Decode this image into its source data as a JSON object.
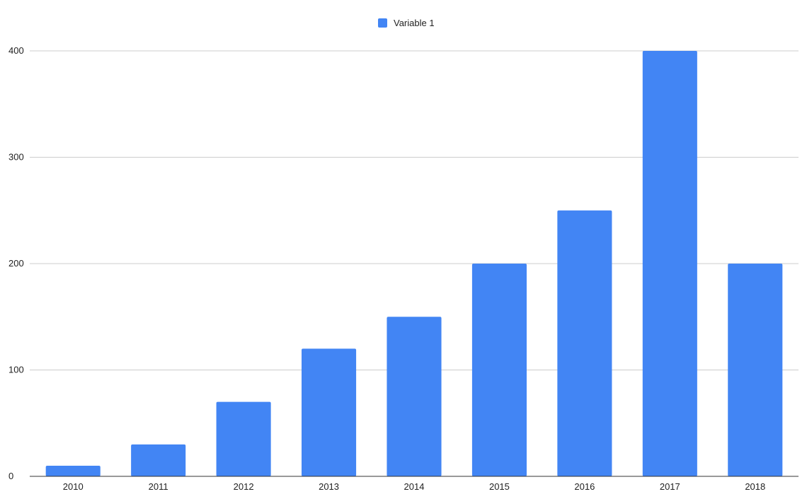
{
  "chart_data": {
    "type": "bar",
    "title": "",
    "xlabel": "",
    "ylabel": "",
    "categories": [
      "2010",
      "2011",
      "2012",
      "2013",
      "2014",
      "2015",
      "2016",
      "2017",
      "2018"
    ],
    "series": [
      {
        "name": "Variable 1",
        "color": "#4285f4",
        "values": [
          10,
          30,
          70,
          120,
          150,
          200,
          250,
          400,
          200
        ]
      }
    ],
    "ylim": [
      0,
      400
    ],
    "yticks": [
      "0",
      "100",
      "200",
      "300",
      "400"
    ],
    "grid": true,
    "legend_position": "top-center"
  }
}
